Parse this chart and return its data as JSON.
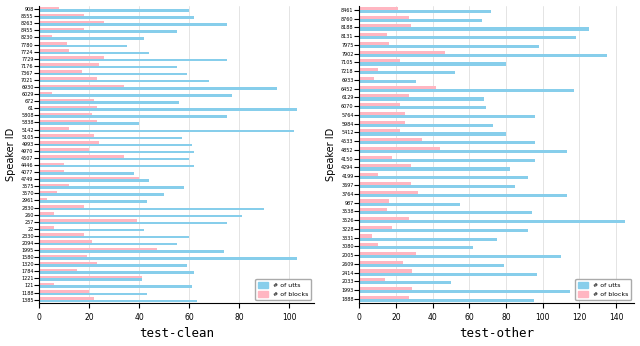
{
  "clean": {
    "speakers": [
      "908",
      "8555",
      "8263",
      "8455",
      "8230",
      "7780",
      "7724",
      "7729",
      "7176",
      "7367",
      "7021",
      "6930",
      "6029",
      "672",
      "61",
      "5808",
      "5838",
      "5142",
      "5105",
      "4993",
      "4970",
      "4507",
      "4446",
      "4077",
      "4749",
      "3575",
      "3570",
      "2961",
      "2830",
      "260",
      "257",
      "22",
      "2330",
      "2094",
      "1995",
      "1580",
      "1320",
      "1784",
      "1221",
      "121",
      "1188",
      "1385"
    ],
    "utts": [
      60,
      62,
      75,
      55,
      42,
      35,
      44,
      75,
      55,
      59,
      68,
      95,
      77,
      56,
      103,
      75,
      40,
      102,
      57,
      61,
      62,
      60,
      62,
      38,
      44,
      58,
      50,
      43,
      90,
      81,
      75,
      42,
      60,
      55,
      74,
      103,
      59,
      62,
      41,
      61,
      43,
      63
    ],
    "blocks": [
      8,
      18,
      26,
      18,
      5,
      11,
      12,
      26,
      24,
      17,
      23,
      34,
      5,
      22,
      23,
      21,
      23,
      12,
      22,
      24,
      20,
      34,
      10,
      10,
      40,
      12,
      7,
      3,
      18,
      6,
      39,
      6,
      18,
      21,
      47,
      19,
      23,
      15,
      41,
      6,
      20,
      22
    ]
  },
  "other": {
    "speakers": [
      "8461",
      "8760",
      "8188",
      "8131",
      "7975",
      "7902",
      "7105",
      "7218",
      "6933",
      "6452",
      "6129",
      "6070",
      "5764",
      "5984",
      "5412",
      "4533",
      "4852",
      "4150",
      "4294",
      "4199",
      "3697",
      "3764",
      "987",
      "3538",
      "3526",
      "3228",
      "3331",
      "3080",
      "2005",
      "2609",
      "2414",
      "2033",
      "1993",
      "1888"
    ],
    "utts": [
      72,
      67,
      125,
      118,
      98,
      135,
      80,
      52,
      31,
      117,
      68,
      69,
      96,
      73,
      80,
      96,
      113,
      96,
      82,
      92,
      85,
      113,
      55,
      94,
      145,
      92,
      75,
      62,
      110,
      79,
      97,
      50,
      115,
      95
    ],
    "blocks": [
      21,
      27,
      28,
      15,
      16,
      47,
      22,
      10,
      8,
      42,
      27,
      22,
      25,
      25,
      22,
      34,
      44,
      18,
      28,
      10,
      28,
      32,
      16,
      15,
      27,
      18,
      7,
      10,
      31,
      24,
      29,
      14,
      29,
      27
    ]
  },
  "utts_color": "#87CEEB",
  "blocks_color": "#FFB6C1",
  "background": "#ffffff",
  "xlabel_clean": "test-clean",
  "xlabel_other": "test-other",
  "ylabel": "Speaker ID",
  "bar_height": 0.35,
  "xlim_clean": [
    0,
    110
  ],
  "xlim_other": [
    0,
    150
  ],
  "legend_utts": "# of utts",
  "legend_blocks": "# of blocks"
}
